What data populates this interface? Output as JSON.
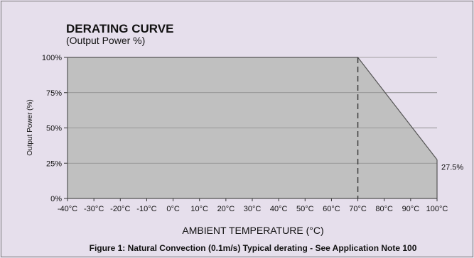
{
  "chart_data": {
    "type": "area",
    "title": "DERATING CURVE",
    "subtitle": "(Output Power %)",
    "xlabel": "AMBIENT TEMPERATURE (°C)",
    "ylabel": "Output Power (%)",
    "caption": "Figure 1: Natural Convection (0.1m/s) Typical derating - See Application Note 100",
    "x_tick_labels": [
      "-40°C",
      "-30°C",
      "-20°C",
      "-10°C",
      "0°C",
      "10°C",
      "20°C",
      "30°C",
      "40°C",
      "50°C",
      "60°C",
      "70°C",
      "80°C",
      "90°C",
      "100°C"
    ],
    "x_ticks": [
      -40,
      -30,
      -20,
      -10,
      0,
      10,
      20,
      30,
      40,
      50,
      60,
      70,
      80,
      90,
      100
    ],
    "y_tick_labels": [
      "0%",
      "25%",
      "50%",
      "75%",
      "100%"
    ],
    "y_ticks": [
      0,
      25,
      50,
      75,
      100
    ],
    "xlim": [
      -40,
      100
    ],
    "ylim": [
      0,
      100
    ],
    "series": [
      {
        "x": [
          -40,
          70,
          100
        ],
        "y": [
          100,
          100,
          27.5
        ]
      }
    ],
    "annotations": [
      {
        "text": "27.5%",
        "x": 100,
        "y": 27.5
      }
    ],
    "vline_x": 70,
    "grid": true,
    "colors": {
      "fill": "#c0c0c0",
      "line": "#555555",
      "grid": "#8a8a8a"
    }
  }
}
